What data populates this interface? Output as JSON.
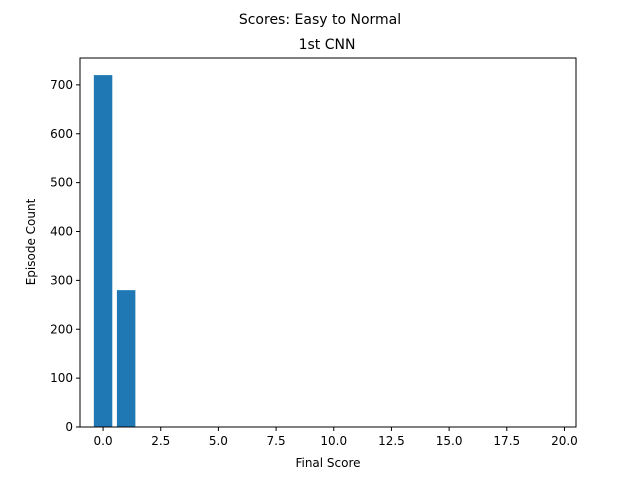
{
  "figure": {
    "suptitle": "Scores: Easy to Normal"
  },
  "chart_data": {
    "type": "bar",
    "title": "1st CNN",
    "xlabel": "Final Score",
    "ylabel": "Episode Count",
    "x": [
      0,
      1
    ],
    "values": [
      720,
      280
    ],
    "bar_width": 0.8,
    "xlim": [
      -1.0,
      20.5
    ],
    "ylim": [
      0,
      755
    ],
    "xticks": [
      0.0,
      2.5,
      5.0,
      7.5,
      10.0,
      12.5,
      15.0,
      17.5,
      20.0
    ],
    "xtick_labels": [
      "0.0",
      "2.5",
      "5.0",
      "7.5",
      "10.0",
      "12.5",
      "15.0",
      "17.5",
      "20.0"
    ],
    "yticks": [
      0,
      100,
      200,
      300,
      400,
      500,
      600,
      700
    ],
    "ytick_labels": [
      "0",
      "100",
      "200",
      "300",
      "400",
      "500",
      "600",
      "700"
    ],
    "grid": false,
    "legend": "none",
    "bar_color": "#1f77b4"
  }
}
